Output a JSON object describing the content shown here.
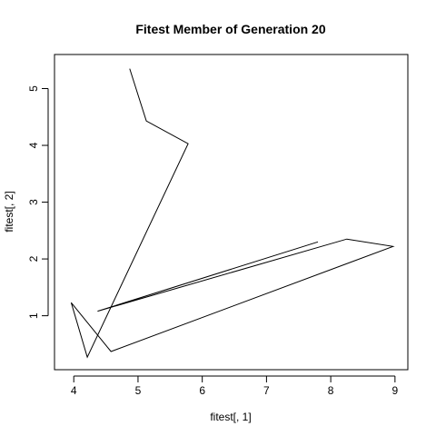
{
  "chart_data": {
    "type": "line",
    "title": "Fitest Member of Generation 20",
    "xlabel": "fitest[, 1]",
    "ylabel": "fitest[, 2]",
    "xlim": [
      3.7,
      9.2
    ],
    "ylim": [
      0.05,
      5.6
    ],
    "grid": false,
    "legend": "none",
    "x_ticks": [
      4,
      5,
      6,
      7,
      8,
      9
    ],
    "y_ticks": [
      1,
      2,
      3,
      4,
      5
    ],
    "series": [
      {
        "x": [
          4.87,
          5.13,
          5.78,
          4.21,
          3.96,
          4.58,
          8.97,
          8.25,
          4.37,
          7.8
        ],
        "y": [
          5.35,
          4.43,
          4.03,
          0.27,
          1.23,
          0.37,
          2.22,
          2.35,
          1.08,
          2.3
        ]
      }
    ]
  }
}
